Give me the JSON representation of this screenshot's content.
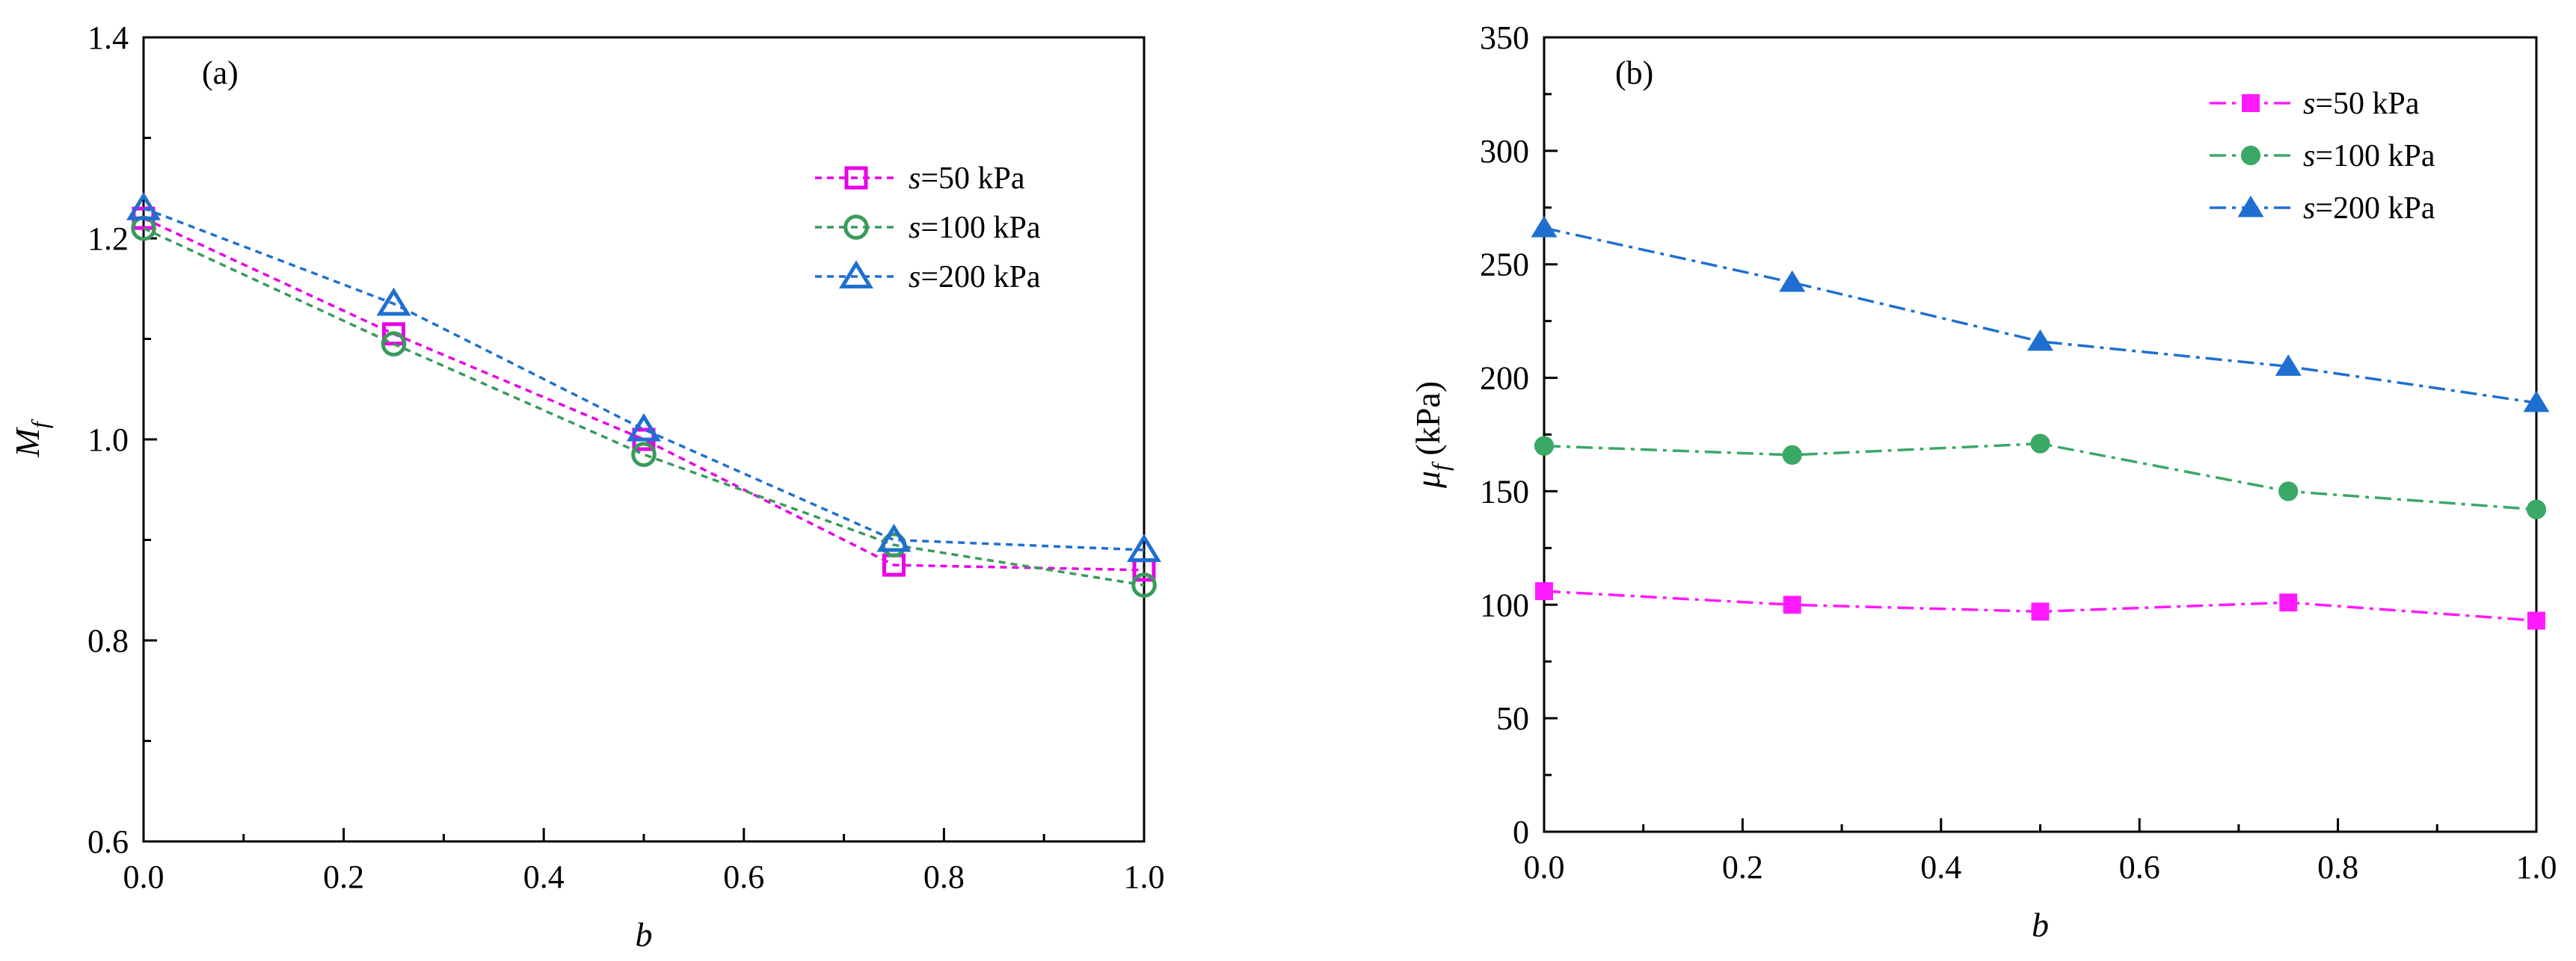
{
  "chart_data": [
    {
      "id": "a",
      "type": "line",
      "panel_label": "(a)",
      "xlabel": "b",
      "ylabel": "M",
      "ylabel_sub": "f",
      "ylabel_unit": "",
      "xlim": [
        0,
        1.0
      ],
      "ylim": [
        0.6,
        1.4
      ],
      "x_ticks": [
        "0.0",
        "0.2",
        "0.4",
        "0.6",
        "0.8",
        "1.0"
      ],
      "y_ticks": [
        "0.6",
        "0.8",
        "1.0",
        "1.2",
        "1.4"
      ],
      "x_tick_values": [
        0,
        0.2,
        0.4,
        0.6,
        0.8,
        1.0
      ],
      "y_tick_values": [
        0.6,
        0.8,
        1.0,
        1.2,
        1.4
      ],
      "legend_position": "top-right",
      "line_style": "dotted",
      "marker_fill": "open",
      "x": [
        0,
        0.25,
        0.5,
        0.75,
        1.0
      ],
      "series": [
        {
          "name": "s=50 kPa",
          "var": "s",
          "rest": "=50 kPa",
          "color": "#e800e8",
          "marker": "square",
          "values": [
            1.22,
            1.105,
            1.0,
            0.875,
            0.87
          ]
        },
        {
          "name": "s=100 kPa",
          "var": "s",
          "rest": "=100 kPa",
          "color": "#3a9a5b",
          "marker": "circle",
          "values": [
            1.21,
            1.095,
            0.985,
            0.895,
            0.855
          ]
        },
        {
          "name": "s=200 kPa",
          "var": "s",
          "rest": "=200 kPa",
          "color": "#1f6fd1",
          "marker": "triangle",
          "values": [
            1.23,
            1.135,
            1.01,
            0.9,
            0.89
          ]
        }
      ]
    },
    {
      "id": "b",
      "type": "line",
      "panel_label": "(b)",
      "xlabel": "b",
      "ylabel": "μ",
      "ylabel_sub": "f",
      "ylabel_unit": " (kPa)",
      "xlim": [
        0,
        1.0
      ],
      "ylim": [
        0,
        350
      ],
      "x_ticks": [
        "0.0",
        "0.2",
        "0.4",
        "0.6",
        "0.8",
        "1.0"
      ],
      "y_ticks": [
        "0",
        "50",
        "100",
        "150",
        "200",
        "250",
        "300",
        "350"
      ],
      "x_tick_values": [
        0,
        0.2,
        0.4,
        0.6,
        0.8,
        1.0
      ],
      "y_tick_values": [
        0,
        50,
        100,
        150,
        200,
        250,
        300,
        350
      ],
      "legend_position": "top-right",
      "line_style": "dashdot",
      "marker_fill": "filled",
      "x": [
        0,
        0.25,
        0.5,
        0.75,
        1.0
      ],
      "series": [
        {
          "name": "s=50 kPa",
          "var": "s",
          "rest": "=50 kPa",
          "color": "#ff1aff",
          "marker": "square",
          "values": [
            106,
            100,
            97,
            101,
            93
          ]
        },
        {
          "name": "s=100 kPa",
          "var": "s",
          "rest": "=100 kPa",
          "color": "#3aa866",
          "marker": "circle",
          "values": [
            170,
            166,
            171,
            150,
            142
          ]
        },
        {
          "name": "s=200 kPa",
          "var": "s",
          "rest": "=200 kPa",
          "color": "#1f6fd1",
          "marker": "triangle",
          "values": [
            266,
            242,
            216,
            205,
            189
          ]
        }
      ]
    }
  ]
}
